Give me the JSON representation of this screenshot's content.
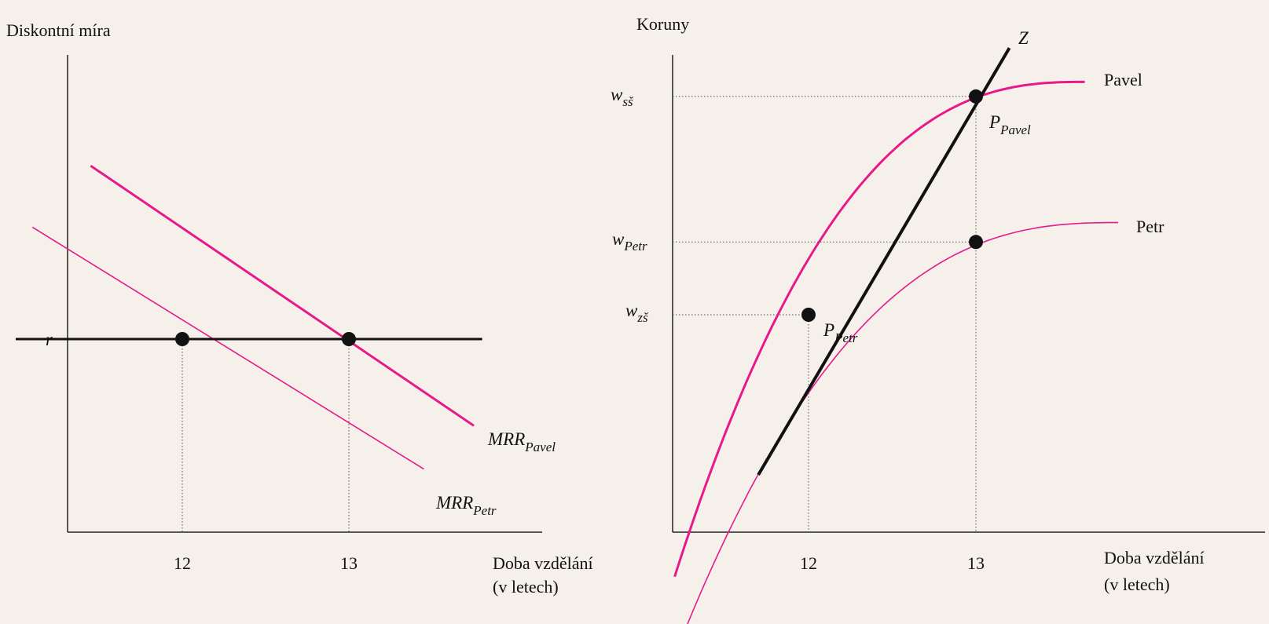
{
  "chart_data": [
    {
      "type": "line",
      "ylabel": "Diskontní míra",
      "xlabel_line1": "Doba vzdělání",
      "xlabel_line2": "(v letech)",
      "x_ticks": [
        "12",
        "13"
      ],
      "y_ticks": [
        "r"
      ],
      "colors": {
        "axis": "#222222",
        "rate": "#111111",
        "pavel": "#e8198b",
        "petr": "#e8198b"
      },
      "series": [
        {
          "id": "pavel",
          "label_main": "MRR",
          "label_sub": "Pavel",
          "x": [
            11.45,
            13.75
          ],
          "y": [
            1.48,
            0.76
          ]
        },
        {
          "id": "petr",
          "label_main": "MRR",
          "label_sub": "Petr",
          "x": [
            11.1,
            13.45
          ],
          "y": [
            1.31,
            0.64
          ]
        },
        {
          "id": "rate",
          "x": [
            11.0,
            13.8
          ],
          "y": [
            1.0,
            1.0
          ]
        }
      ],
      "points": [
        {
          "x": 12,
          "y": 1.0
        },
        {
          "x": 13,
          "y": 1.0
        }
      ]
    },
    {
      "type": "line",
      "ylabel": "Koruny",
      "xlabel_line1": "Doba vzdělání",
      "xlabel_line2": "(v letech)",
      "x_ticks": [
        "12",
        "13"
      ],
      "y_ticks": [
        {
          "main": "w",
          "sub": "sš",
          "value": 0.8
        },
        {
          "main": "w",
          "sub": "Petr",
          "value": 0.5
        },
        {
          "main": "w",
          "sub": "zš",
          "value": 0.35
        }
      ],
      "colors": {
        "axis": "#222222",
        "z": "#111111",
        "pavel": "#e8198b",
        "petr": "#e8198b"
      },
      "curves": [
        {
          "id": "pavel",
          "name": "Pavel",
          "x0": 11.2,
          "x1": 13.65,
          "ymin": -0.19,
          "ymax": 0.83
        },
        {
          "id": "petr",
          "name": "Petr",
          "x0": 11.25,
          "x1": 13.85,
          "ymin": -0.31,
          "ymax": 0.54
        }
      ],
      "z_line": {
        "name": "Z",
        "x": [
          11.7,
          13.2
        ],
        "y": [
          0.02,
          0.9
        ]
      },
      "points": [
        {
          "x": 13,
          "y": 0.8,
          "main": "P",
          "sub": "Pavel"
        },
        {
          "x": 12,
          "y": 0.35,
          "main": "P",
          "sub": "Petr"
        },
        {
          "x": 13,
          "y": 0.5,
          "main": "",
          "sub": ""
        }
      ]
    }
  ]
}
